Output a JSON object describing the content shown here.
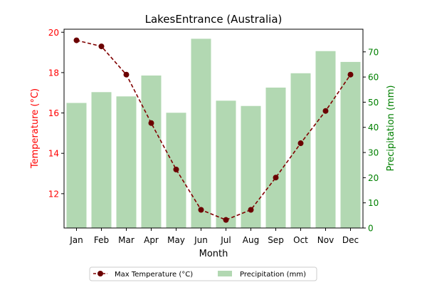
{
  "chart_data": {
    "type": "bar+line",
    "title": "LakesEntrance (Australia)",
    "xlabel": "Month",
    "ylabel_left": "Temperature (°C)",
    "ylabel_right": "Precipitation (mm)",
    "categories": [
      "Jan",
      "Feb",
      "Mar",
      "Apr",
      "May",
      "Jun",
      "Jul",
      "Aug",
      "Sep",
      "Oct",
      "Nov",
      "Dec"
    ],
    "left_axis": {
      "min": 10.3,
      "max": 20.15,
      "ticks": [
        12,
        14,
        16,
        18,
        20
      ],
      "color": "#ff0000"
    },
    "right_axis": {
      "min": 0,
      "max": 79,
      "ticks": [
        0,
        10,
        20,
        30,
        40,
        50,
        60,
        70
      ],
      "color": "#008000"
    },
    "grid": false,
    "legend_position": "bottom-center",
    "series": [
      {
        "name": "Max Temperature (°C)",
        "type": "line",
        "axis": "left",
        "color": "#800000",
        "marker_color": "#6b0000",
        "linestyle": "dashed",
        "values": [
          19.6,
          19.3,
          17.9,
          15.5,
          13.2,
          11.2,
          10.7,
          11.2,
          12.8,
          14.5,
          16.1,
          17.9
        ]
      },
      {
        "name": "Precipitation (mm)",
        "type": "bar",
        "axis": "right",
        "color": "#b2d8b2",
        "values": [
          49.7,
          54.0,
          52.3,
          60.6,
          45.8,
          75.2,
          50.6,
          48.5,
          55.8,
          61.5,
          70.3,
          66.0
        ]
      }
    ]
  }
}
